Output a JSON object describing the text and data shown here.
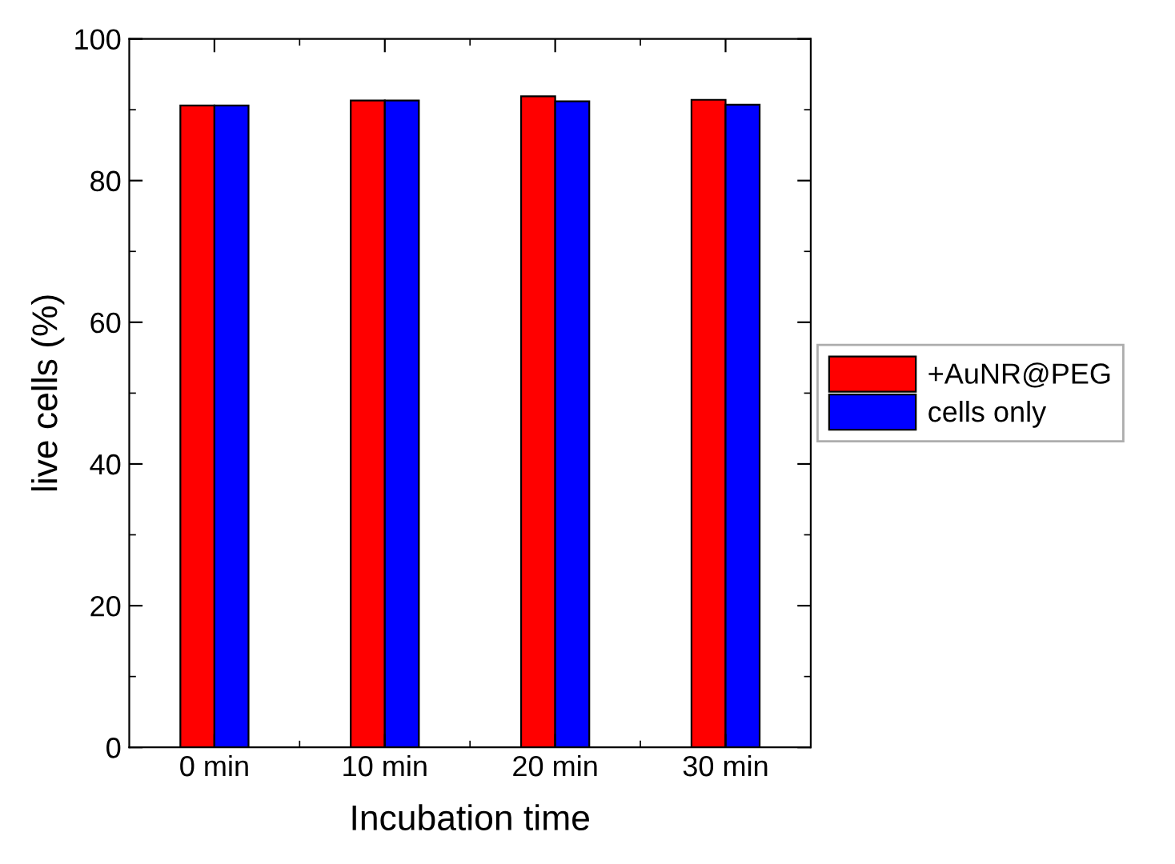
{
  "chart_data": {
    "type": "bar",
    "xlabel": "Incubation time",
    "ylabel": "live cells (%)",
    "categories": [
      "0 min",
      "10 min",
      "20 min",
      "30 min"
    ],
    "series": [
      {
        "name": "+AuNR@PEG",
        "color": "#ff0000",
        "values": [
          90.6,
          91.3,
          91.9,
          91.4
        ]
      },
      {
        "name": "cells only",
        "color": "#0000ff",
        "values": [
          90.6,
          91.3,
          91.2,
          90.7
        ]
      }
    ],
    "ylim": [
      0,
      100
    ],
    "yticks": [
      0,
      20,
      40,
      60,
      80,
      100
    ],
    "grid": false,
    "legend": "right"
  }
}
